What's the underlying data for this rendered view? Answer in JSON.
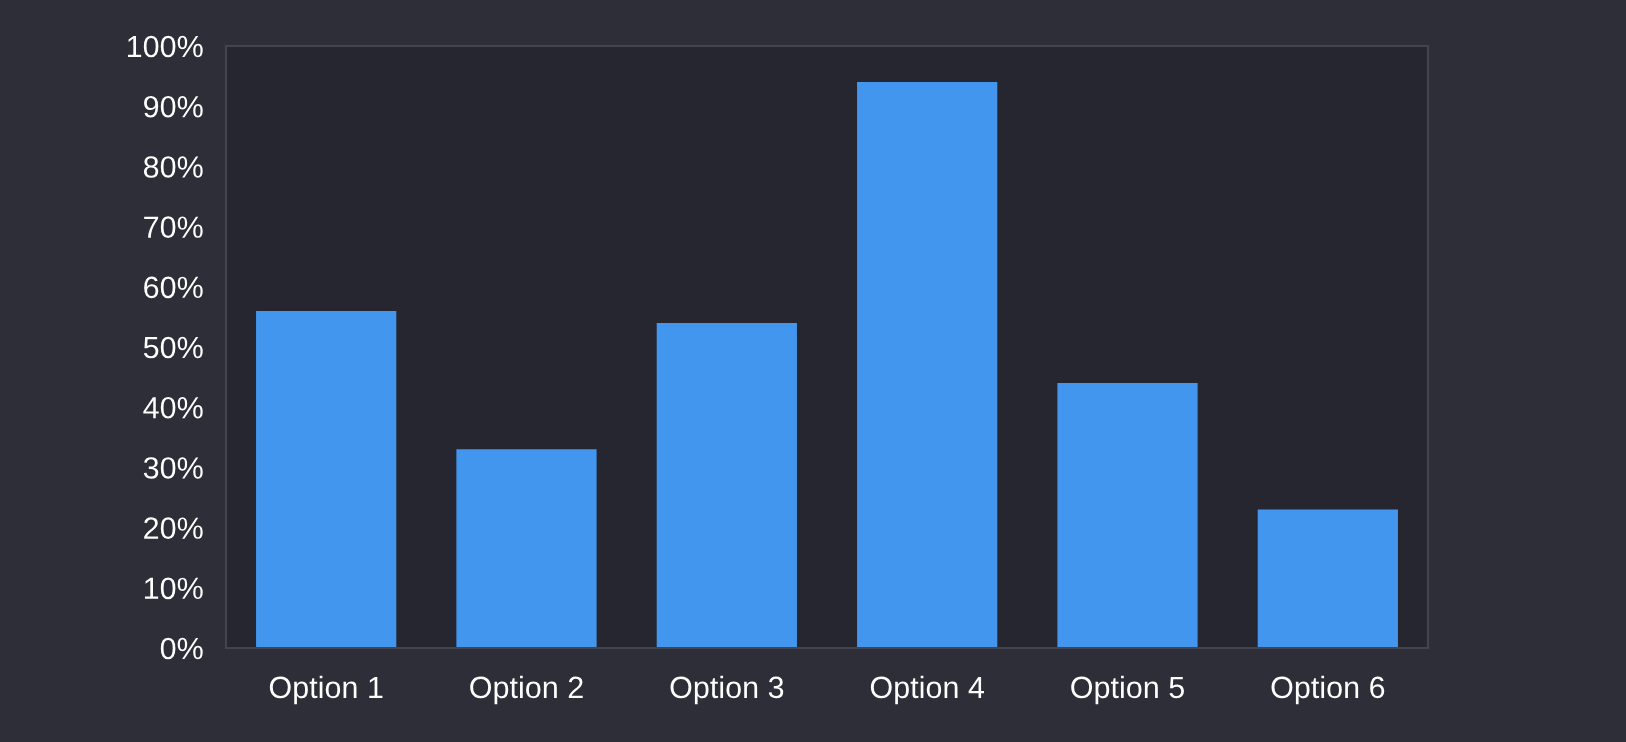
{
  "chart_data": {
    "type": "bar",
    "categories": [
      "Option 1",
      "Option 2",
      "Option 3",
      "Option 4",
      "Option 5",
      "Option 6"
    ],
    "values": [
      56,
      33,
      54,
      94,
      44,
      23
    ],
    "color": "#4396ed",
    "ylim": [
      0,
      100
    ],
    "yticks": [
      {
        "value": 0,
        "label": "0%"
      },
      {
        "value": 10,
        "label": "10%"
      },
      {
        "value": 20,
        "label": "20%"
      },
      {
        "value": 30,
        "label": "30%"
      },
      {
        "value": 40,
        "label": "40%"
      },
      {
        "value": 50,
        "label": "50%"
      },
      {
        "value": 60,
        "label": "60%"
      },
      {
        "value": 70,
        "label": "70%"
      },
      {
        "value": 80,
        "label": "80%"
      },
      {
        "value": 90,
        "label": "90%"
      },
      {
        "value": 100,
        "label": "100%"
      }
    ],
    "grid": false
  }
}
